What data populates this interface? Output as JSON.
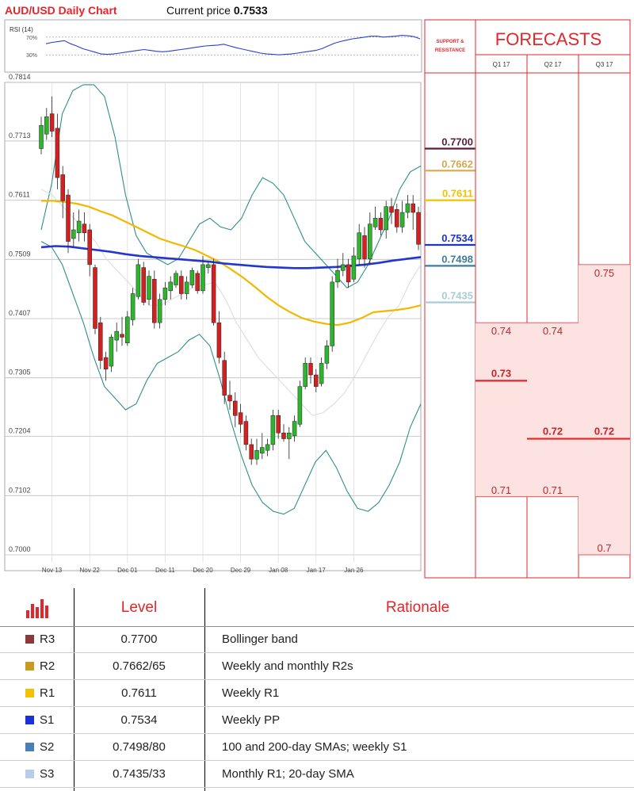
{
  "header": {
    "title": "AUD/USD Daily Chart",
    "price_label": "Current price",
    "price_value": "0.7533"
  },
  "rsi_panel": {
    "label": "RSI (14)",
    "levels": [
      "70%",
      "30%"
    ],
    "values": [
      55,
      58,
      60,
      62,
      55,
      50,
      44,
      40,
      36,
      32,
      31,
      32,
      34,
      36,
      38,
      40,
      42,
      40,
      38,
      37,
      38,
      40,
      42,
      44,
      46,
      48,
      50,
      51,
      52,
      54,
      50,
      46,
      43,
      40,
      37,
      34,
      32,
      31,
      30,
      31,
      32,
      34,
      36,
      38,
      40,
      44,
      50,
      56,
      60,
      63,
      66,
      68,
      70,
      72,
      72,
      70,
      71,
      72,
      74,
      73,
      71,
      66
    ]
  },
  "side_panel": {
    "support_resistance_label": "SUPPORT & RESISTANCE",
    "forecasts_title": "FORECASTS",
    "quarters": [
      "Q1 17",
      "Q2 17",
      "Q3 17"
    ],
    "levels": [
      {
        "label": "0.7700",
        "color": "#5a1e3a"
      },
      {
        "label": "0.7662",
        "color": "#d6a850"
      },
      {
        "label": "0.7611",
        "color": "#f2c200"
      },
      {
        "label": "0.7534",
        "color": "#1a35c8"
      },
      {
        "label": "0.7498",
        "color": "#3e7d9e"
      },
      {
        "label": "0.7435",
        "color": "#a9ccd8"
      }
    ],
    "forecasts": [
      {
        "quarter": "Q1 17",
        "high": "0.74",
        "mid": "0.73",
        "low": "0.71"
      },
      {
        "quarter": "Q2 17",
        "high": "0.74",
        "mid": "0.72",
        "low": "0.71"
      },
      {
        "quarter": "Q3 17",
        "high": "0.75",
        "mid": "0.72",
        "low": "0.7"
      }
    ]
  },
  "chart_data": {
    "type": "candlestick",
    "title": "AUD/USD Daily Chart",
    "y_ticks": [
      "0.7814",
      "0.7713",
      "0.7611",
      "0.7509",
      "0.7407",
      "0.7305",
      "0.7204",
      "0.7102",
      "0.7000"
    ],
    "ylim": [
      0.7,
      0.7814
    ],
    "x_ticks": [
      "Nov 13",
      "Nov 22",
      "Dec 01",
      "Dec 11",
      "Dec 20",
      "Dec 29",
      "Jan 08",
      "Jan 17",
      "Jan 26"
    ],
    "x_tick_index": [
      2,
      9,
      16,
      23,
      30,
      37,
      44,
      51,
      58
    ],
    "candles": [
      [
        0.77,
        0.774,
        0.7755,
        0.769
      ],
      [
        0.7725,
        0.7755,
        0.777,
        0.7715
      ],
      [
        0.776,
        0.773,
        0.779,
        0.772
      ],
      [
        0.7735,
        0.765,
        0.776,
        0.763
      ],
      [
        0.7655,
        0.761,
        0.767,
        0.758
      ],
      [
        0.762,
        0.754,
        0.763,
        0.752
      ],
      [
        0.7545,
        0.756,
        0.759,
        0.753
      ],
      [
        0.7555,
        0.7575,
        0.7595,
        0.754
      ],
      [
        0.757,
        0.7555,
        0.759,
        0.754
      ],
      [
        0.756,
        0.75,
        0.757,
        0.748
      ],
      [
        0.7495,
        0.739,
        0.75,
        0.738
      ],
      [
        0.74,
        0.7335,
        0.741,
        0.732
      ],
      [
        0.734,
        0.732,
        0.735,
        0.73
      ],
      [
        0.7325,
        0.7375,
        0.738,
        0.7315
      ],
      [
        0.737,
        0.7385,
        0.74,
        0.735
      ],
      [
        0.738,
        0.7375,
        0.741,
        0.736
      ],
      [
        0.7365,
        0.741,
        0.742,
        0.736
      ],
      [
        0.7405,
        0.745,
        0.746,
        0.7395
      ],
      [
        0.7445,
        0.75,
        0.751,
        0.744
      ],
      [
        0.7495,
        0.7435,
        0.7505,
        0.743
      ],
      [
        0.744,
        0.748,
        0.749,
        0.743
      ],
      [
        0.7475,
        0.74,
        0.749,
        0.739
      ],
      [
        0.74,
        0.744,
        0.745,
        0.739
      ],
      [
        0.744,
        0.746,
        0.747,
        0.743
      ],
      [
        0.7455,
        0.747,
        0.748,
        0.744
      ],
      [
        0.7465,
        0.7485,
        0.749,
        0.746
      ],
      [
        0.748,
        0.745,
        0.749,
        0.744
      ],
      [
        0.745,
        0.747,
        0.748,
        0.744
      ],
      [
        0.7465,
        0.749,
        0.7495,
        0.746
      ],
      [
        0.7485,
        0.7455,
        0.749,
        0.745
      ],
      [
        0.7455,
        0.75,
        0.7515,
        0.745
      ],
      [
        0.7495,
        0.75,
        0.7505,
        0.7485
      ],
      [
        0.75,
        0.74,
        0.751,
        0.7395
      ],
      [
        0.74,
        0.734,
        0.742,
        0.733
      ],
      [
        0.7335,
        0.7275,
        0.735,
        0.726
      ],
      [
        0.7275,
        0.7265,
        0.73,
        0.725
      ],
      [
        0.7265,
        0.724,
        0.728,
        0.722
      ],
      [
        0.7245,
        0.7225,
        0.726,
        0.721
      ],
      [
        0.723,
        0.719,
        0.724,
        0.718
      ],
      [
        0.719,
        0.7165,
        0.72,
        0.7155
      ],
      [
        0.7165,
        0.718,
        0.72,
        0.7155
      ],
      [
        0.7175,
        0.7185,
        0.721,
        0.7165
      ],
      [
        0.718,
        0.719,
        0.72,
        0.717
      ],
      [
        0.719,
        0.724,
        0.725,
        0.718
      ],
      [
        0.724,
        0.721,
        0.725,
        0.72
      ],
      [
        0.721,
        0.72,
        0.7225,
        0.7195
      ],
      [
        0.72,
        0.721,
        0.722,
        0.7165
      ],
      [
        0.7205,
        0.723,
        0.724,
        0.7195
      ],
      [
        0.7225,
        0.729,
        0.73,
        0.722
      ],
      [
        0.729,
        0.733,
        0.734,
        0.7285
      ],
      [
        0.733,
        0.731,
        0.734,
        0.7295
      ],
      [
        0.731,
        0.729,
        0.732,
        0.728
      ],
      [
        0.7295,
        0.733,
        0.734,
        0.729
      ],
      [
        0.733,
        0.736,
        0.737,
        0.732
      ],
      [
        0.736,
        0.747,
        0.748,
        0.735
      ],
      [
        0.747,
        0.749,
        0.751,
        0.746
      ],
      [
        0.749,
        0.75,
        0.752,
        0.748
      ],
      [
        0.75,
        0.747,
        0.751,
        0.746
      ],
      [
        0.7475,
        0.7515,
        0.753,
        0.747
      ],
      [
        0.751,
        0.7555,
        0.757,
        0.75
      ],
      [
        0.755,
        0.751,
        0.7565,
        0.7495
      ],
      [
        0.751,
        0.757,
        0.759,
        0.75
      ],
      [
        0.7565,
        0.758,
        0.76,
        0.756
      ],
      [
        0.758,
        0.756,
        0.759,
        0.755
      ],
      [
        0.756,
        0.76,
        0.761,
        0.7545
      ],
      [
        0.76,
        0.759,
        0.7615,
        0.757
      ],
      [
        0.7595,
        0.7565,
        0.7605,
        0.7555
      ],
      [
        0.7565,
        0.759,
        0.761,
        0.7555
      ],
      [
        0.759,
        0.7605,
        0.762,
        0.758
      ],
      [
        0.7605,
        0.759,
        0.762,
        0.756
      ],
      [
        0.759,
        0.7535,
        0.76,
        0.7525
      ]
    ],
    "series": [
      {
        "color": "#2f8f88",
        "values": [
          0.756,
          0.764,
          0.776,
          0.78,
          0.781,
          0.781,
          0.779,
          0.772,
          0.762,
          0.755,
          0.752,
          0.751,
          0.75,
          0.751,
          0.754,
          0.757,
          0.758,
          0.7565,
          0.756,
          0.758,
          0.762,
          0.765,
          0.764,
          0.762,
          0.758,
          0.754,
          0.752,
          0.75,
          0.748,
          0.746,
          0.747,
          0.75,
          0.754,
          0.758,
          0.763,
          0.766,
          0.767
        ]
      },
      {
        "color": "#2f8f88",
        "values": [
          0.754,
          0.753,
          0.75,
          0.745,
          0.74,
          0.734,
          0.729,
          0.727,
          0.725,
          0.726,
          0.73,
          0.733,
          0.734,
          0.735,
          0.737,
          0.738,
          0.736,
          0.73,
          0.723,
          0.717,
          0.712,
          0.709,
          0.7075,
          0.707,
          0.708,
          0.712,
          0.716,
          0.718,
          0.715,
          0.711,
          0.708,
          0.7075,
          0.709,
          0.712,
          0.716,
          0.722,
          0.726
        ]
      },
      {
        "color": "#dddddd",
        "values": [
          0.763,
          0.762,
          0.76,
          0.758,
          0.756,
          0.754,
          0.751,
          0.749,
          0.747,
          0.745,
          0.743,
          0.743,
          0.744,
          0.745,
          0.746,
          0.7465,
          0.747,
          0.744,
          0.74,
          0.737,
          0.734,
          0.732,
          0.73,
          0.728,
          0.726,
          0.724,
          0.7245,
          0.726,
          0.728,
          0.731,
          0.7345,
          0.738,
          0.741,
          0.743,
          0.747,
          0.75
        ]
      },
      {
        "color": "#f2b800",
        "values": [
          0.761,
          0.761,
          0.7608,
          0.7605,
          0.76,
          0.7592,
          0.7585,
          0.7575,
          0.7565,
          0.7555,
          0.7545,
          0.7538,
          0.7532,
          0.7525,
          0.7515,
          0.7505,
          0.7492,
          0.7478,
          0.7462,
          0.7445,
          0.743,
          0.7418,
          0.7408,
          0.7402,
          0.7398,
          0.7396,
          0.74,
          0.7408,
          0.7418,
          0.742,
          0.7422,
          0.7425,
          0.743
        ]
      },
      {
        "color": "#2435d0",
        "values": [
          0.753,
          0.7532,
          0.7531,
          0.7528,
          0.7525,
          0.7522,
          0.7518,
          0.7515,
          0.7513,
          0.7511,
          0.7509,
          0.7507,
          0.7505,
          0.7502,
          0.75,
          0.7498,
          0.7496,
          0.7495,
          0.7494,
          0.7494,
          0.7495,
          0.7496,
          0.7498,
          0.75,
          0.7503,
          0.7507,
          0.751,
          0.7513
        ]
      }
    ]
  },
  "table": {
    "headers": {
      "level": "Level",
      "rationale": "Rationale"
    },
    "rows": [
      {
        "tag": "R3",
        "color": "#8b3a3a",
        "level": "0.7700",
        "rationale": "Bollinger band"
      },
      {
        "tag": "R2",
        "color": "#c89b1e",
        "level": "0.7662/65",
        "rationale": "Weekly and monthly R2s"
      },
      {
        "tag": "R1",
        "color": "#f2c200",
        "level": "0.7611",
        "rationale": "Weekly R1"
      },
      {
        "tag": "S1",
        "color": "#1a2fd6",
        "level": "0.7534",
        "rationale": "Weekly PP"
      },
      {
        "tag": "S2",
        "color": "#4a7fb5",
        "level": "0.7498/80",
        "rationale": "100 and 200-day SMAs; weekly S1"
      },
      {
        "tag": "S3",
        "color": "#b7cde8",
        "level": "0.7435/33",
        "rationale": "Monthly R1; 20-day SMA"
      }
    ]
  }
}
